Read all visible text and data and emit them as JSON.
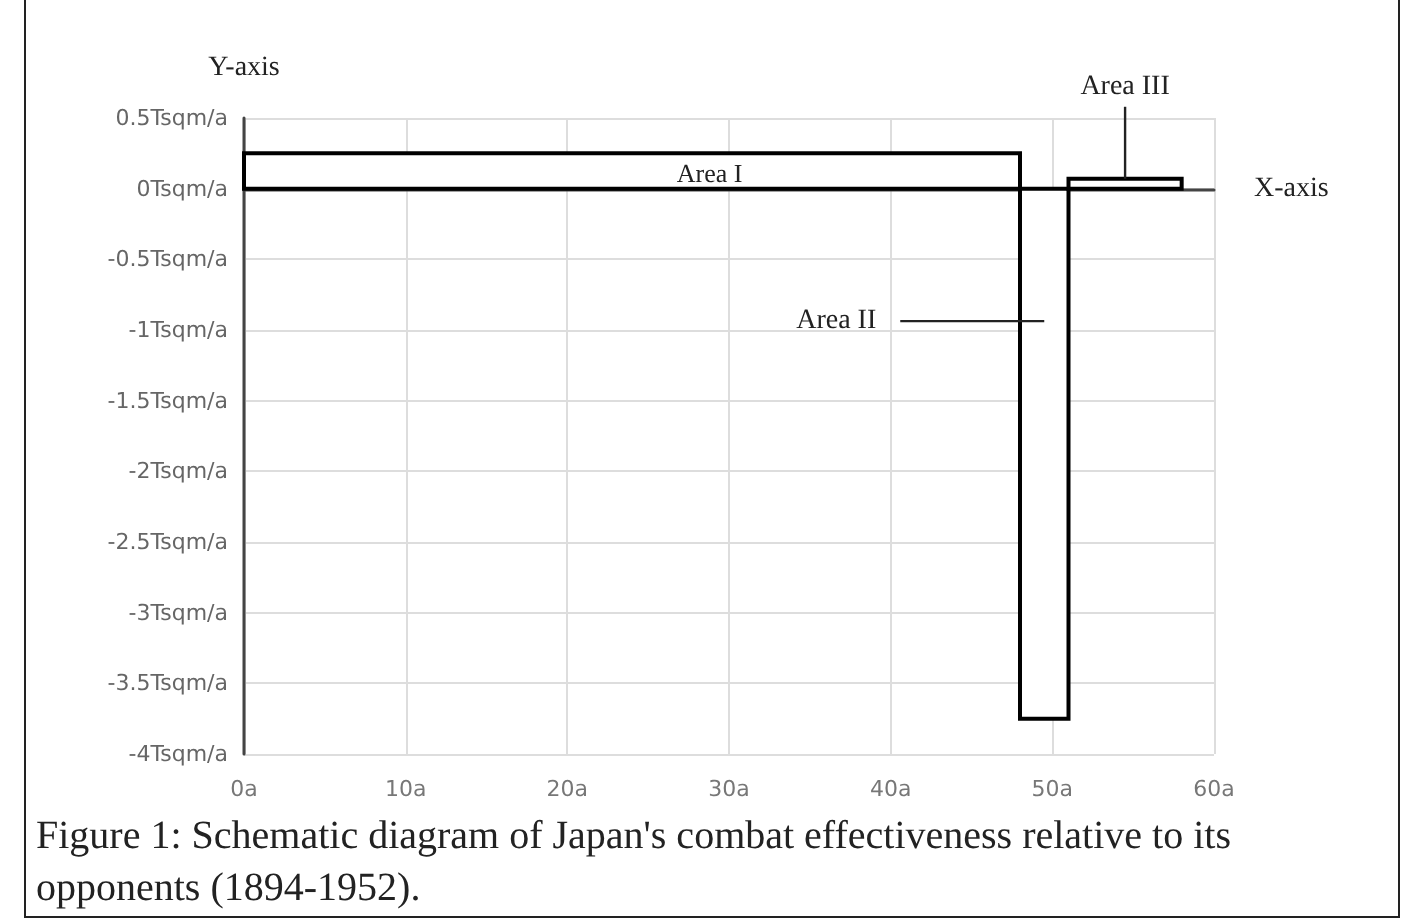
{
  "chart_data": {
    "type": "histogram",
    "title": "Figure 1: Schematic diagram of Japan's combat effectiveness relative to its opponents (1894-1952).",
    "xlabel": "X-axis",
    "ylabel": "Y-axis",
    "bins": [
      0,
      48,
      51,
      58
    ],
    "values": [
      0.25,
      -3.75,
      0.07
    ],
    "color": "#000000",
    "xlim": [
      0,
      60
    ],
    "xticks": [
      {
        "value": 0,
        "label": "0a"
      },
      {
        "value": 10,
        "label": "10a"
      },
      {
        "value": 20,
        "label": "20a"
      },
      {
        "value": 30,
        "label": "30a"
      },
      {
        "value": 40,
        "label": "40a"
      },
      {
        "value": 50,
        "label": "50a"
      },
      {
        "value": 60,
        "label": "60a"
      }
    ],
    "ylim": [
      -4,
      0.5
    ],
    "yticks": [
      {
        "value": 0.5,
        "label": "0.5Tsqm/a"
      },
      {
        "value": 0,
        "label": "0Tsqm/a"
      },
      {
        "value": -0.5,
        "label": "-0.5Tsqm/a"
      },
      {
        "value": -1,
        "label": "-1Tsqm/a"
      },
      {
        "value": -1.5,
        "label": "-1.5Tsqm/a"
      },
      {
        "value": -2,
        "label": "-2Tsqm/a"
      },
      {
        "value": -2.5,
        "label": "-2.5Tsqm/a"
      },
      {
        "value": -3,
        "label": "-3Tsqm/a"
      },
      {
        "value": -3.5,
        "label": "-3.5Tsqm/a"
      },
      {
        "value": -4,
        "label": "-4Tsqm/a"
      }
    ],
    "grid": true,
    "annotations": [
      "Area I",
      "Area II",
      {
        "text": "Area III",
        "x": 54.5,
        "y": 0.07
      }
    ]
  }
}
